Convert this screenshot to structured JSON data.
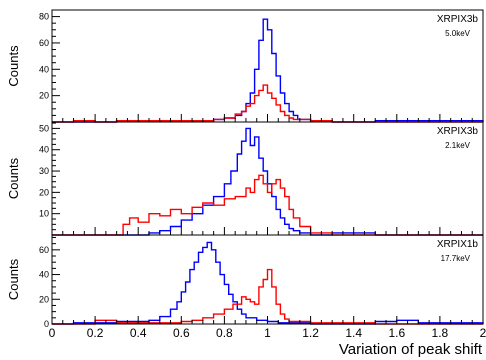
{
  "chart_data": {
    "type": "line",
    "xlabel": "Variation of peak shift",
    "xlim": [
      0,
      2
    ],
    "x_ticks": [
      "0",
      "0.2",
      "0.4",
      "0.6",
      "0.8",
      "1",
      "1.2",
      "1.4",
      "1.6",
      "1.8",
      "2"
    ],
    "panels": [
      {
        "label": "XRPIX3b",
        "energy": "5.0keV",
        "ylabel": "Counts",
        "ylim": [
          0,
          85
        ],
        "y_ticks": [
          20,
          40,
          60,
          80
        ],
        "series": [
          {
            "color": "#0000ff",
            "x": [
              0.0,
              0.1,
              0.2,
              0.3,
              0.4,
              0.5,
              0.6,
              0.7,
              0.75,
              0.8,
              0.85,
              0.88,
              0.9,
              0.92,
              0.94,
              0.96,
              0.98,
              1.0,
              1.02,
              1.04,
              1.06,
              1.08,
              1.1,
              1.12,
              1.14,
              1.2,
              1.3,
              1.5,
              1.8,
              2.0
            ],
            "y": [
              0,
              0,
              0,
              1,
              1,
              1,
              1,
              1,
              2,
              3,
              5,
              8,
              14,
              22,
              40,
              62,
              78,
              70,
              52,
              35,
              22,
              14,
              8,
              5,
              2,
              1,
              0,
              1,
              1,
              0
            ]
          },
          {
            "color": "#ff0000",
            "x": [
              0.0,
              0.1,
              0.2,
              0.3,
              0.4,
              0.5,
              0.6,
              0.7,
              0.75,
              0.8,
              0.85,
              0.88,
              0.9,
              0.92,
              0.94,
              0.96,
              0.98,
              1.0,
              1.02,
              1.04,
              1.06,
              1.08,
              1.1,
              1.12,
              1.2,
              1.3,
              1.5,
              2.0
            ],
            "y": [
              0,
              1,
              0,
              1,
              1,
              1,
              1,
              1,
              2,
              3,
              6,
              8,
              12,
              14,
              20,
              24,
              28,
              22,
              18,
              13,
              8,
              5,
              3,
              2,
              1,
              0,
              0,
              0
            ]
          }
        ]
      },
      {
        "label": "XRPIX3b",
        "energy": "2.1keV",
        "ylabel": "Counts",
        "ylim": [
          0,
          53
        ],
        "y_ticks": [
          10,
          20,
          30,
          40,
          50
        ],
        "series": [
          {
            "color": "#0000ff",
            "x": [
              0.0,
              0.3,
              0.4,
              0.45,
              0.5,
              0.55,
              0.6,
              0.65,
              0.7,
              0.75,
              0.8,
              0.83,
              0.86,
              0.88,
              0.9,
              0.92,
              0.94,
              0.96,
              0.98,
              1.0,
              1.02,
              1.04,
              1.06,
              1.08,
              1.1,
              1.12,
              1.15,
              1.2,
              1.3,
              1.5,
              2.0
            ],
            "y": [
              0,
              0,
              0,
              1,
              2,
              4,
              7,
              10,
              14,
              18,
              24,
              30,
              38,
              44,
              50,
              42,
              46,
              36,
              30,
              24,
              18,
              12,
              8,
              5,
              3,
              2,
              1,
              0,
              1,
              0,
              0
            ]
          },
          {
            "color": "#ff0000",
            "x": [
              0.0,
              0.3,
              0.33,
              0.36,
              0.4,
              0.45,
              0.5,
              0.55,
              0.6,
              0.65,
              0.7,
              0.75,
              0.8,
              0.85,
              0.9,
              0.92,
              0.94,
              0.96,
              0.98,
              1.0,
              1.02,
              1.04,
              1.06,
              1.08,
              1.1,
              1.12,
              1.15,
              1.2,
              1.3,
              2.0
            ],
            "y": [
              0,
              0,
              5,
              8,
              6,
              10,
              9,
              12,
              10,
              13,
              15,
              14,
              17,
              18,
              22,
              20,
              26,
              28,
              24,
              20,
              24,
              26,
              22,
              18,
              12,
              8,
              4,
              1,
              0,
              0
            ]
          }
        ]
      },
      {
        "label": "XRPIX1b",
        "energy": "17.7keV",
        "ylabel": "Counts",
        "ylim": [
          0,
          72
        ],
        "y_ticks": [
          0,
          20,
          40,
          60
        ],
        "series": [
          {
            "color": "#0000ff",
            "x": [
              0.0,
              0.1,
              0.2,
              0.3,
              0.4,
              0.45,
              0.5,
              0.55,
              0.58,
              0.6,
              0.62,
              0.64,
              0.66,
              0.68,
              0.7,
              0.72,
              0.74,
              0.76,
              0.78,
              0.8,
              0.82,
              0.84,
              0.86,
              0.88,
              0.9,
              0.95,
              1.0,
              1.05,
              1.1,
              1.2,
              1.4,
              1.5,
              1.6,
              1.7,
              1.8,
              2.0
            ],
            "y": [
              0,
              1,
              1,
              2,
              2,
              3,
              6,
              12,
              18,
              26,
              34,
              44,
              50,
              58,
              62,
              66,
              60,
              50,
              40,
              32,
              24,
              18,
              12,
              8,
              5,
              3,
              2,
              1,
              1,
              0,
              0,
              2,
              3,
              1,
              1,
              0
            ]
          },
          {
            "color": "#ff0000",
            "x": [
              0.0,
              0.1,
              0.2,
              0.3,
              0.4,
              0.5,
              0.6,
              0.65,
              0.7,
              0.75,
              0.8,
              0.84,
              0.88,
              0.9,
              0.92,
              0.94,
              0.96,
              0.98,
              1.0,
              1.02,
              1.04,
              1.06,
              1.08,
              1.1,
              1.2,
              1.5,
              2.0
            ],
            "y": [
              0,
              0,
              3,
              1,
              1,
              1,
              2,
              3,
              5,
              8,
              12,
              16,
              22,
              20,
              18,
              16,
              30,
              36,
              44,
              30,
              16,
              8,
              4,
              2,
              1,
              0,
              0
            ]
          }
        ]
      }
    ]
  }
}
